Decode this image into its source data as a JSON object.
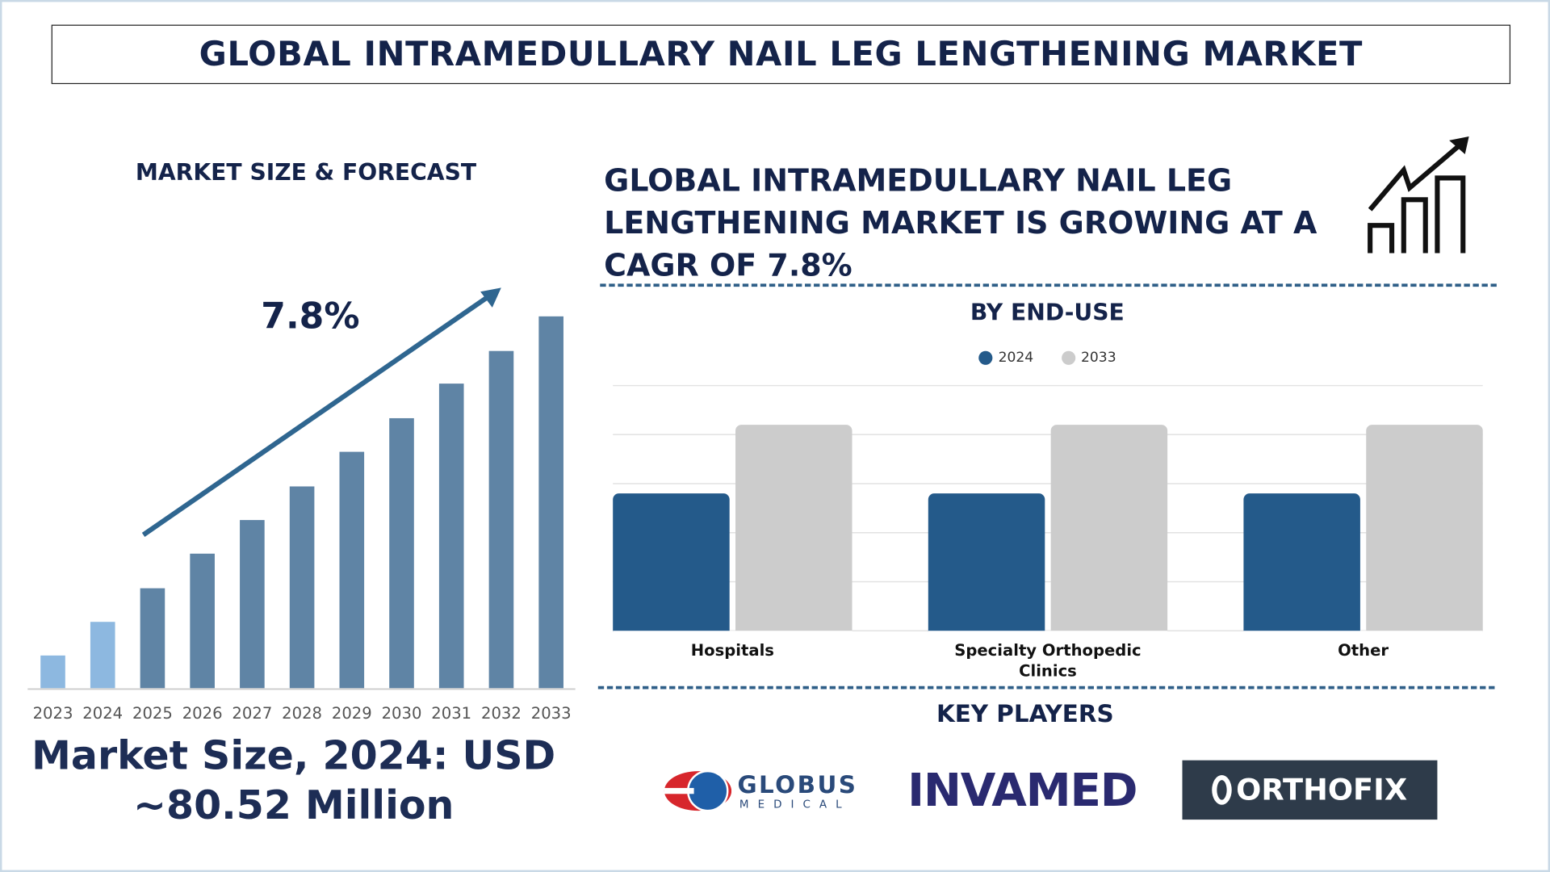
{
  "title": "GLOBAL INTRAMEDULLARY NAIL LEG LENGTHENING MARKET",
  "left_panel": {
    "heading": "MARKET SIZE & FORECAST",
    "cagr_label": "7.8%",
    "market_size_line1": "Market Size, 2024: USD",
    "market_size_line2": "~80.52 Million"
  },
  "headline": "GLOBAL INTRAMEDULLARY NAIL LEG LENGTHENING MARKET IS GROWING AT A CAGR OF 7.8%",
  "headline_icon": "growth-chart-icon",
  "key_players": {
    "title": "KEY PLAYERS",
    "logos": [
      "GLOBUS MEDICAL",
      "INVAMED",
      "ORTHOFIX"
    ]
  },
  "chart_data": [
    {
      "type": "bar",
      "categories": [
        "2023",
        "2024",
        "2025",
        "2026",
        "2027",
        "2028",
        "2029",
        "2030",
        "2031",
        "2032",
        "2033"
      ],
      "values": [
        33,
        67,
        101,
        136,
        170,
        204,
        239,
        273,
        308,
        341,
        376
      ],
      "colors": [
        "#8db8e0",
        "#8db8e0",
        "#5f84a5",
        "#5f84a5",
        "#5f84a5",
        "#5f84a5",
        "#5f84a5",
        "#5f84a5",
        "#5f84a5",
        "#5f84a5",
        "#5f84a5"
      ],
      "annotation": "7.8%",
      "grid": false
    },
    {
      "type": "bar",
      "title": "BY END-USE",
      "categories": [
        "Hospitals",
        "Specialty Orthopedic Clinics",
        "Other"
      ],
      "series": [
        {
          "name": "2024",
          "values": [
            2.8,
            2.8,
            2.8
          ],
          "color": "#245a8a"
        },
        {
          "name": "2033",
          "values": [
            4.2,
            4.2,
            4.2
          ],
          "color": "#cccccc"
        }
      ],
      "ylim": [
        0,
        5
      ],
      "grid": true,
      "legend": "top"
    }
  ]
}
